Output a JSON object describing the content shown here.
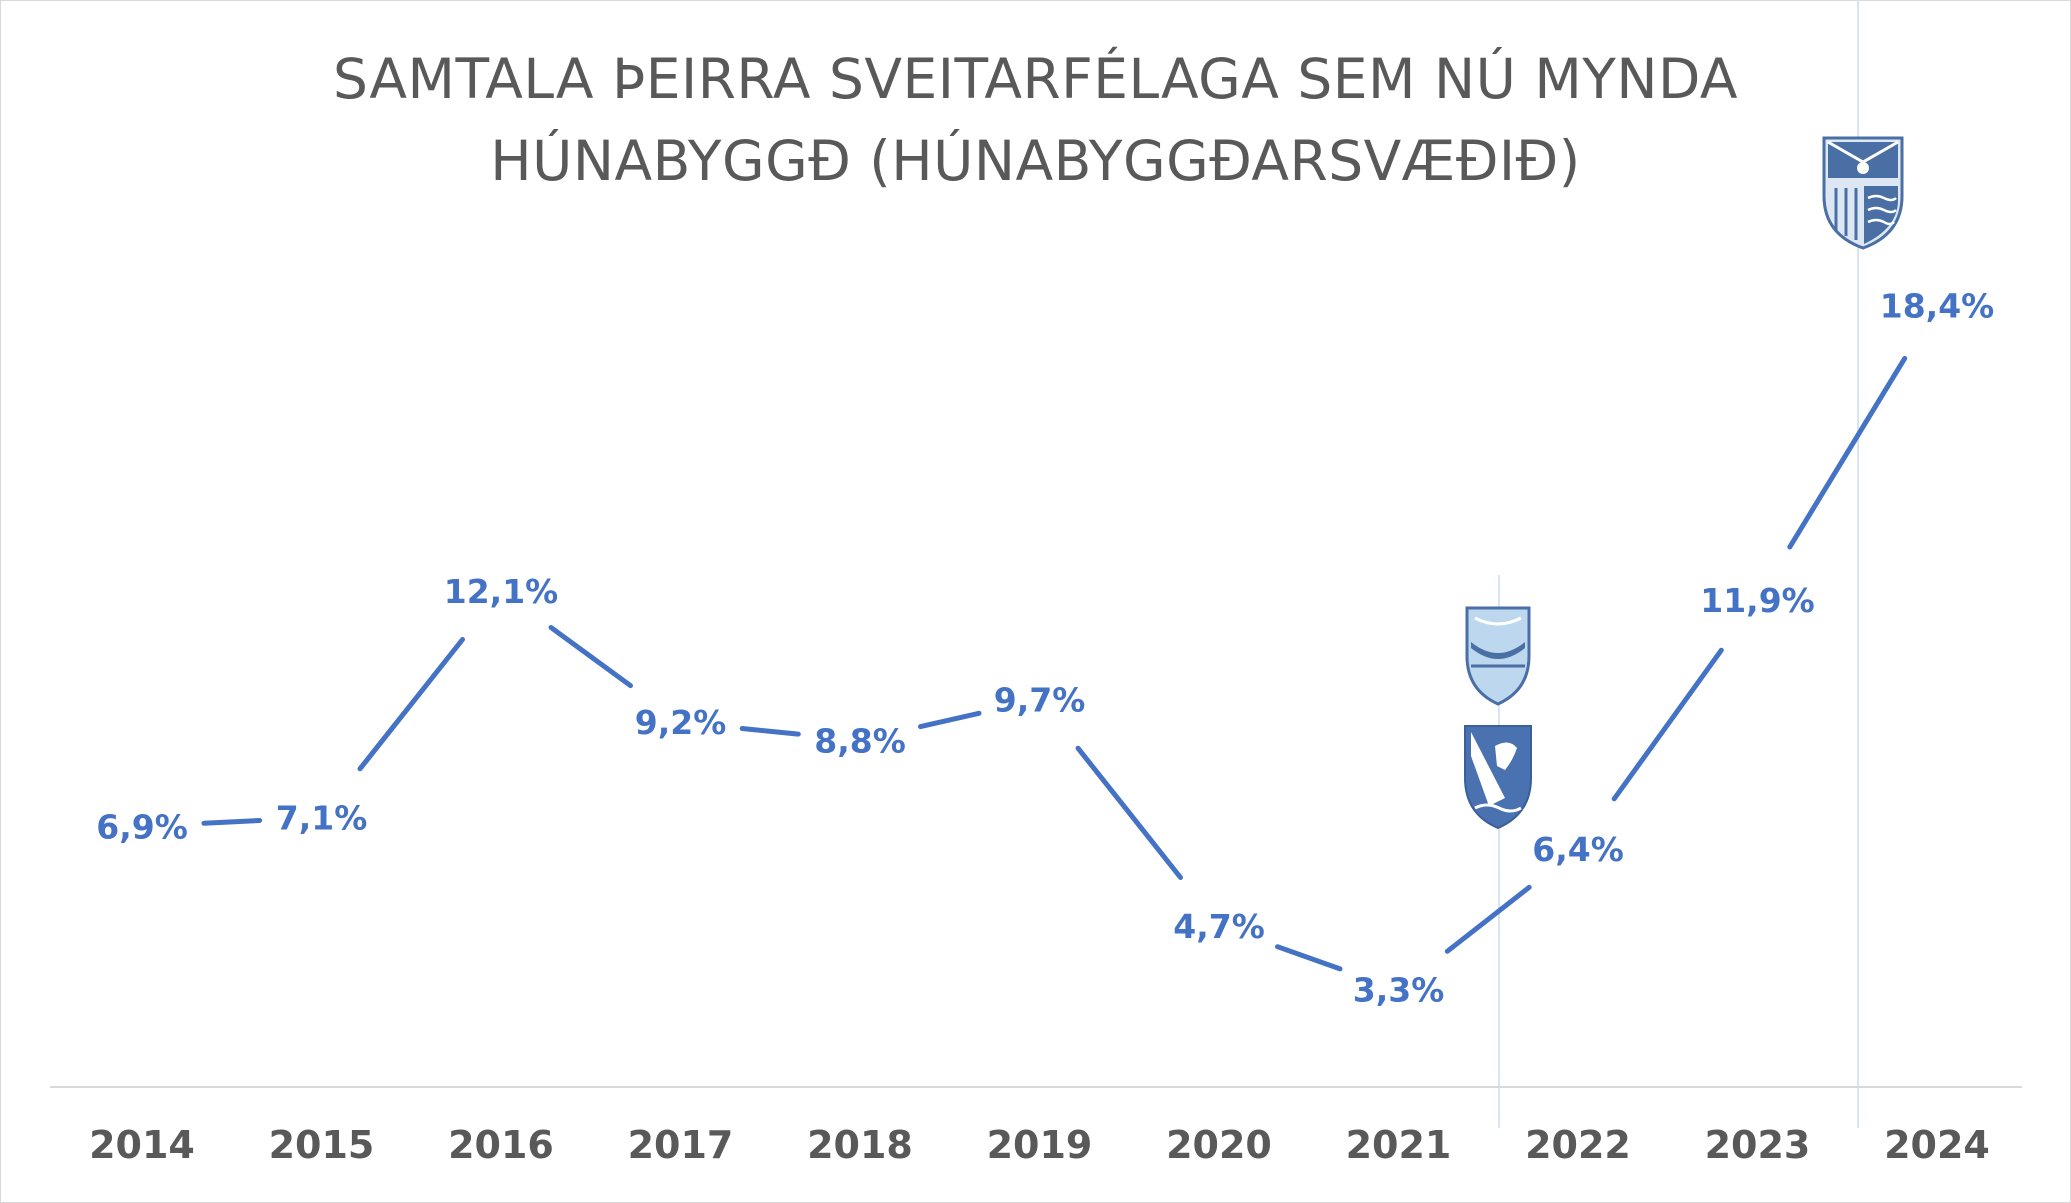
{
  "chart_data": {
    "type": "line",
    "title_lines": [
      "SAMTALA ÞEIRRA SVEITARFÉLAGA SEM NÚ MYNDA",
      "HÚNABYGGÐ (HÚNABYGGÐARSVÆÐIÐ)"
    ],
    "categories": [
      "2014",
      "2015",
      "2016",
      "2017",
      "2018",
      "2019",
      "2020",
      "2021",
      "2022",
      "2023",
      "2024"
    ],
    "series": [
      {
        "values": [
          6.9,
          7.1,
          12.1,
          9.2,
          8.8,
          9.7,
          4.7,
          3.3,
          6.4,
          11.9,
          18.4
        ],
        "labels": [
          "6,9%",
          "7,1%",
          "12,1%",
          "9,2%",
          "8,8%",
          "9,7%",
          "4,7%",
          "3,3%",
          "6,4%",
          "11,9%",
          "18,4%"
        ],
        "color": "#4472c4"
      }
    ],
    "ylim": [
      0,
      20
    ],
    "grid": false,
    "legend": "none",
    "markers": [
      {
        "after_category": "2021",
        "description": "municipal-merger-marker",
        "icons": [
          "crest-light-blue-icon",
          "crest-falcon-icon"
        ]
      },
      {
        "after_category": "2023",
        "description": "municipal-merger-marker",
        "icons": [
          "crest-hunabyggd-icon"
        ]
      }
    ]
  },
  "colors": {
    "line": "#4472c4",
    "text": "#595959",
    "axis": "#d9d9d9",
    "marker_line": "#dae3f3"
  }
}
